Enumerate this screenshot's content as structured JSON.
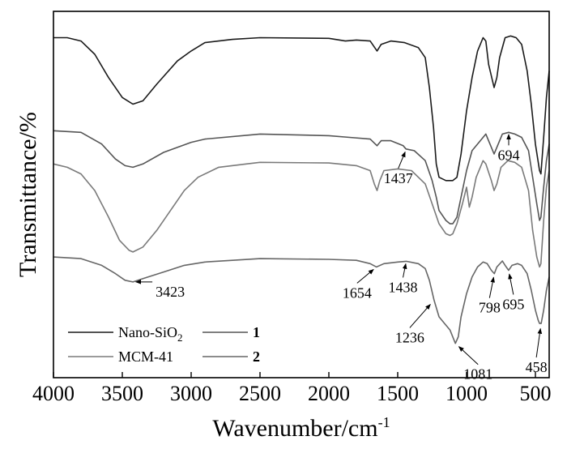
{
  "chart_data": {
    "type": "line",
    "title": "",
    "xlabel": "Wavenumber/cm",
    "xlabel_sup": "-1",
    "ylabel": "Transmittance/%",
    "x_reversed": true,
    "xlim": [
      4000,
      400
    ],
    "xticks": [
      4000,
      3500,
      3000,
      2500,
      2000,
      1500,
      1000,
      500
    ],
    "y_ticks_shown": false,
    "grid": false,
    "legend_position": "bottom-left",
    "legend": [
      {
        "series": "Nano-SiO2",
        "label": "Nano-SiO",
        "sub": "2",
        "bold": false
      },
      {
        "series": "1",
        "label": "1",
        "sub": "",
        "bold": true
      },
      {
        "series": "MCM-41",
        "label": "MCM-41",
        "sub": "",
        "bold": false
      },
      {
        "series": "2",
        "label": "2",
        "sub": "",
        "bold": true
      }
    ],
    "series": [
      {
        "name": "Nano-SiO2",
        "color": "#1a1a1a",
        "points": [
          [
            4000,
            90
          ],
          [
            3900,
            90
          ],
          [
            3800,
            89
          ],
          [
            3700,
            85
          ],
          [
            3600,
            78
          ],
          [
            3500,
            72
          ],
          [
            3423,
            70
          ],
          [
            3350,
            71
          ],
          [
            3250,
            76
          ],
          [
            3100,
            83
          ],
          [
            3000,
            86
          ],
          [
            2900,
            88.5
          ],
          [
            2700,
            89.5
          ],
          [
            2500,
            90
          ],
          [
            2000,
            89.8
          ],
          [
            1880,
            89
          ],
          [
            1800,
            89.3
          ],
          [
            1700,
            89
          ],
          [
            1650,
            86
          ],
          [
            1620,
            88
          ],
          [
            1550,
            89
          ],
          [
            1450,
            88.5
          ],
          [
            1350,
            87
          ],
          [
            1300,
            84
          ],
          [
            1270,
            75
          ],
          [
            1240,
            63
          ],
          [
            1220,
            52
          ],
          [
            1200,
            48
          ],
          [
            1150,
            47
          ],
          [
            1100,
            47
          ],
          [
            1070,
            48
          ],
          [
            1040,
            55
          ],
          [
            1000,
            68
          ],
          [
            960,
            78
          ],
          [
            920,
            86
          ],
          [
            880,
            90
          ],
          [
            860,
            89
          ],
          [
            840,
            82
          ],
          [
            800,
            75
          ],
          [
            780,
            78
          ],
          [
            760,
            84
          ],
          [
            720,
            90
          ],
          [
            680,
            90.5
          ],
          [
            640,
            90
          ],
          [
            600,
            88
          ],
          [
            560,
            80
          ],
          [
            530,
            70
          ],
          [
            500,
            58
          ],
          [
            470,
            50
          ],
          [
            460,
            49
          ],
          [
            440,
            60
          ],
          [
            420,
            72
          ],
          [
            400,
            80
          ]
        ]
      },
      {
        "name": "1",
        "color": "#555555",
        "points": [
          [
            4000,
            62
          ],
          [
            3800,
            61.5
          ],
          [
            3650,
            58
          ],
          [
            3550,
            53.5
          ],
          [
            3480,
            51.5
          ],
          [
            3423,
            51
          ],
          [
            3350,
            52
          ],
          [
            3200,
            55.5
          ],
          [
            3000,
            58.5
          ],
          [
            2900,
            59.5
          ],
          [
            2500,
            61
          ],
          [
            2000,
            60.5
          ],
          [
            1850,
            60
          ],
          [
            1700,
            59.5
          ],
          [
            1650,
            57.5
          ],
          [
            1620,
            59
          ],
          [
            1550,
            59
          ],
          [
            1460,
            57.5
          ],
          [
            1440,
            56.5
          ],
          [
            1380,
            56
          ],
          [
            1300,
            53
          ],
          [
            1250,
            47
          ],
          [
            1220,
            42
          ],
          [
            1200,
            38
          ],
          [
            1150,
            35
          ],
          [
            1120,
            34
          ],
          [
            1100,
            34
          ],
          [
            1070,
            36
          ],
          [
            1030,
            44
          ],
          [
            1000,
            50
          ],
          [
            960,
            56
          ],
          [
            900,
            59
          ],
          [
            860,
            61
          ],
          [
            830,
            58
          ],
          [
            800,
            55
          ],
          [
            780,
            57
          ],
          [
            740,
            61
          ],
          [
            694,
            61.5
          ],
          [
            650,
            61
          ],
          [
            600,
            60
          ],
          [
            550,
            56
          ],
          [
            520,
            48
          ],
          [
            490,
            40
          ],
          [
            470,
            35
          ],
          [
            460,
            36
          ],
          [
            440,
            45
          ],
          [
            420,
            53
          ],
          [
            400,
            58
          ]
        ]
      },
      {
        "name": "MCM-41",
        "color": "#7a7a7a",
        "points": [
          [
            4000,
            52
          ],
          [
            3900,
            51
          ],
          [
            3800,
            49
          ],
          [
            3700,
            44
          ],
          [
            3600,
            36
          ],
          [
            3520,
            29
          ],
          [
            3450,
            26
          ],
          [
            3423,
            25.5
          ],
          [
            3350,
            27
          ],
          [
            3250,
            32
          ],
          [
            3150,
            38
          ],
          [
            3050,
            44
          ],
          [
            2950,
            48
          ],
          [
            2800,
            51
          ],
          [
            2600,
            52
          ],
          [
            2500,
            52.5
          ],
          [
            2000,
            52.3
          ],
          [
            1800,
            51.5
          ],
          [
            1700,
            50
          ],
          [
            1670,
            46
          ],
          [
            1650,
            44
          ],
          [
            1630,
            47
          ],
          [
            1600,
            50
          ],
          [
            1500,
            50.5
          ],
          [
            1400,
            50
          ],
          [
            1350,
            48
          ],
          [
            1300,
            46
          ],
          [
            1250,
            40
          ],
          [
            1200,
            34
          ],
          [
            1150,
            31
          ],
          [
            1120,
            30.5
          ],
          [
            1100,
            31
          ],
          [
            1070,
            34
          ],
          [
            1030,
            40
          ],
          [
            1000,
            45
          ],
          [
            980,
            39
          ],
          [
            960,
            42
          ],
          [
            930,
            48
          ],
          [
            880,
            53
          ],
          [
            860,
            52
          ],
          [
            820,
            47
          ],
          [
            800,
            44
          ],
          [
            780,
            46
          ],
          [
            750,
            51
          ],
          [
            700,
            53
          ],
          [
            650,
            52.5
          ],
          [
            600,
            51
          ],
          [
            550,
            44
          ],
          [
            520,
            32
          ],
          [
            490,
            24
          ],
          [
            470,
            21
          ],
          [
            460,
            22
          ],
          [
            440,
            35
          ],
          [
            420,
            45
          ],
          [
            400,
            50
          ]
        ]
      },
      {
        "name": "2",
        "color": "#666666",
        "points": [
          [
            4000,
            24
          ],
          [
            3800,
            23.5
          ],
          [
            3650,
            21.5
          ],
          [
            3550,
            19
          ],
          [
            3480,
            17
          ],
          [
            3423,
            16.5
          ],
          [
            3350,
            17.5
          ],
          [
            3200,
            19.5
          ],
          [
            3050,
            21.5
          ],
          [
            2900,
            22.5
          ],
          [
            2700,
            23
          ],
          [
            2500,
            23.5
          ],
          [
            2000,
            23.3
          ],
          [
            1800,
            23
          ],
          [
            1700,
            22
          ],
          [
            1654,
            21
          ],
          [
            1600,
            22
          ],
          [
            1500,
            22.5
          ],
          [
            1438,
            22.7
          ],
          [
            1350,
            22
          ],
          [
            1300,
            20.5
          ],
          [
            1270,
            17
          ],
          [
            1236,
            11
          ],
          [
            1200,
            6
          ],
          [
            1160,
            4
          ],
          [
            1120,
            2
          ],
          [
            1081,
            -2
          ],
          [
            1060,
            0
          ],
          [
            1040,
            6
          ],
          [
            1000,
            13
          ],
          [
            960,
            18
          ],
          [
            920,
            21
          ],
          [
            880,
            22.5
          ],
          [
            850,
            22
          ],
          [
            820,
            20
          ],
          [
            798,
            19
          ],
          [
            780,
            21
          ],
          [
            740,
            22.8
          ],
          [
            720,
            21.5
          ],
          [
            695,
            20
          ],
          [
            670,
            21.5
          ],
          [
            630,
            22
          ],
          [
            600,
            21.5
          ],
          [
            560,
            19
          ],
          [
            530,
            14
          ],
          [
            500,
            8
          ],
          [
            480,
            5
          ],
          [
            470,
            4
          ],
          [
            458,
            4
          ],
          [
            440,
            8
          ],
          [
            420,
            14
          ],
          [
            400,
            18
          ]
        ]
      }
    ],
    "annotations": [
      {
        "text": "3423",
        "x": 3423,
        "y": 16.5,
        "series": "2"
      },
      {
        "text": "1437",
        "x": 1437,
        "y": 56.5,
        "series": "1"
      },
      {
        "text": "694",
        "x": 694,
        "y": 61.5,
        "series": "1"
      },
      {
        "text": "1654",
        "x": 1654,
        "y": 21,
        "series": "2"
      },
      {
        "text": "1438",
        "x": 1438,
        "y": 22.7,
        "series": "2"
      },
      {
        "text": "1236",
        "x": 1236,
        "y": 11,
        "series": "2"
      },
      {
        "text": "1081",
        "x": 1081,
        "y": -2,
        "series": "2"
      },
      {
        "text": "798",
        "x": 798,
        "y": 19,
        "series": "2"
      },
      {
        "text": "695",
        "x": 695,
        "y": 20,
        "series": "2"
      },
      {
        "text": "458",
        "x": 458,
        "y": 4,
        "series": "2"
      }
    ]
  }
}
